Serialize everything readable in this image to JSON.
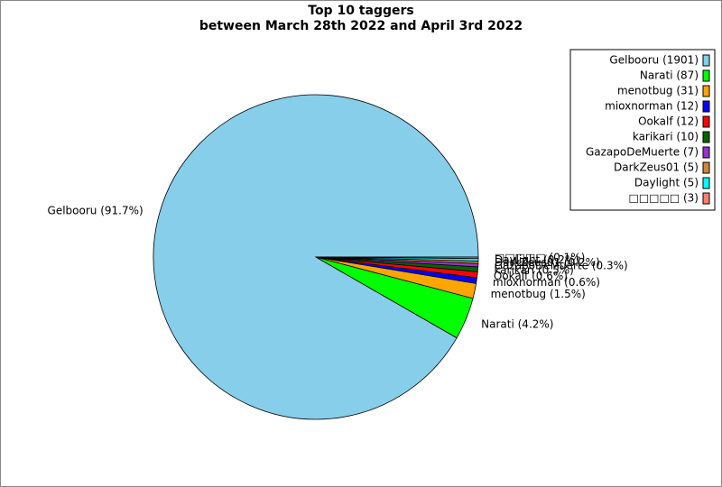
{
  "chart_data": {
    "type": "pie",
    "title": "Top 10 taggers",
    "subtitle": "between March 28th 2022 and April 3rd 2022",
    "categories": [
      "Gelbooru (1901)",
      "Narati (87)",
      "menotbug (31)",
      "mioxnorman (12)",
      "Ookalf (12)",
      "karikari (10)",
      "GazapoDeMuerte (7)",
      "DarkZeus01 (5)",
      "Daylight (5)",
      "□□□□□ (3)"
    ],
    "values": [
      1901,
      87,
      31,
      12,
      12,
      10,
      7,
      5,
      5,
      3
    ],
    "value_labels": [
      "Gelbooru (91.7%)",
      "Narati (4.2%)",
      "menotbug (1.5%)",
      "mioxnorman (0.6%)",
      "Ookalf (0.6%)",
      "karikari (0.5%)",
      "GazapoDeMuerte (0.3%)",
      "DarkZeus01 (0.2%)",
      "Daylight (0.2%)",
      "□□□□□ (0.1%)"
    ],
    "colors": [
      "#87ceeb",
      "#00ff00",
      "#ffa500",
      "#0000ff",
      "#ff0000",
      "#006400",
      "#9932cc",
      "#cd853f",
      "#00ffff",
      "#fa8072"
    ],
    "legend": "upper right"
  }
}
